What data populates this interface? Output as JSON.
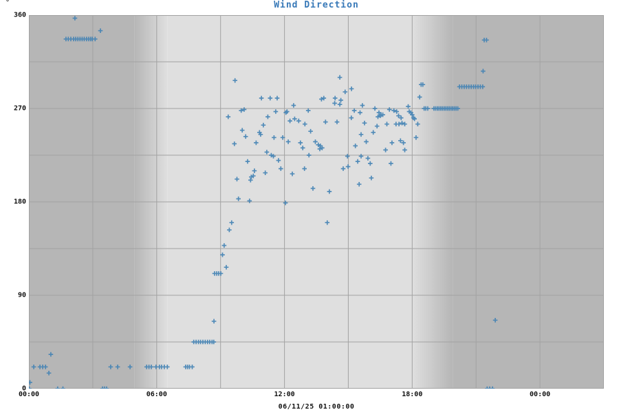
{
  "chart": {
    "title": "Wind Direction",
    "unit_label": "°",
    "x_axis_label": "06/11/25 01:00:00",
    "title_color": "#3879b8",
    "marker_color": "#4182b4"
  },
  "chart_data": {
    "type": "scatter",
    "marker": "plus",
    "title": "Wind Direction",
    "ylabel": "°",
    "xlabel": "06/11/25 01:00:00",
    "x_unit": "hours since 06/11/25 00:00",
    "xlim": [
      0,
      27
    ],
    "ylim": [
      0,
      360
    ],
    "x_ticks": [
      {
        "h": 0,
        "label": "00:00"
      },
      {
        "h": 6,
        "label": "06:00"
      },
      {
        "h": 12,
        "label": "12:00"
      },
      {
        "h": 18,
        "label": "18:00"
      },
      {
        "h": 24,
        "label": "00:00"
      }
    ],
    "x_grid_hours": [
      3,
      6,
      9,
      12,
      15,
      18,
      21,
      24
    ],
    "y_ticks": [
      {
        "v": 0,
        "label": "0"
      },
      {
        "v": 90,
        "label": "90"
      },
      {
        "v": 180,
        "label": "180"
      },
      {
        "v": 270,
        "label": "270"
      },
      {
        "v": 360,
        "label": "360"
      }
    ],
    "y_grid_degrees": [
      45,
      90,
      135,
      180,
      225,
      270,
      315
    ],
    "grid_color": "#a2a2a2",
    "legend": "none",
    "day_night_shading": {
      "night_color": "#b6b6b6",
      "day_color": "#dfdfdf",
      "sunrise_fade_hours": [
        4.95,
        6.5
      ],
      "sunset_fade_hours": [
        18.0,
        19.9
      ]
    },
    "points": [
      [
        0.02,
        0
      ],
      [
        0.05,
        6
      ],
      [
        0.23,
        21
      ],
      [
        0.52,
        21
      ],
      [
        0.65,
        21
      ],
      [
        0.78,
        21
      ],
      [
        0.94,
        15
      ],
      [
        1.03,
        33
      ],
      [
        1.35,
        0
      ],
      [
        1.6,
        0
      ],
      [
        1.74,
        337
      ],
      [
        1.85,
        337
      ],
      [
        1.97,
        337
      ],
      [
        2.1,
        337
      ],
      [
        2.2,
        337
      ],
      [
        2.3,
        337
      ],
      [
        2.4,
        337
      ],
      [
        2.5,
        337
      ],
      [
        2.6,
        337
      ],
      [
        2.71,
        337
      ],
      [
        2.81,
        337
      ],
      [
        2.9,
        337
      ],
      [
        2.98,
        337
      ],
      [
        3.11,
        337
      ],
      [
        2.16,
        357
      ],
      [
        3.36,
        345
      ],
      [
        3.46,
        0
      ],
      [
        3.55,
        0
      ],
      [
        3.65,
        0
      ],
      [
        3.84,
        21
      ],
      [
        4.17,
        21
      ],
      [
        4.75,
        21
      ],
      [
        5.53,
        21
      ],
      [
        5.64,
        21
      ],
      [
        5.75,
        21
      ],
      [
        5.97,
        21
      ],
      [
        6.13,
        21
      ],
      [
        6.23,
        21
      ],
      [
        6.36,
        21
      ],
      [
        6.5,
        21
      ],
      [
        7.36,
        21
      ],
      [
        7.45,
        21
      ],
      [
        7.54,
        21
      ],
      [
        7.67,
        21
      ],
      [
        7.74,
        45
      ],
      [
        7.85,
        45
      ],
      [
        7.96,
        45
      ],
      [
        8.06,
        45
      ],
      [
        8.17,
        45
      ],
      [
        8.28,
        45
      ],
      [
        8.39,
        45
      ],
      [
        8.49,
        45
      ],
      [
        8.6,
        45
      ],
      [
        8.68,
        45
      ],
      [
        8.69,
        65
      ],
      [
        8.72,
        111
      ],
      [
        8.82,
        111
      ],
      [
        8.91,
        111
      ],
      [
        9.01,
        111
      ],
      [
        9.09,
        129
      ],
      [
        9.17,
        138
      ],
      [
        9.27,
        117
      ],
      [
        9.41,
        153
      ],
      [
        9.52,
        160
      ],
      [
        9.36,
        262
      ],
      [
        9.65,
        236
      ],
      [
        9.68,
        297
      ],
      [
        9.77,
        202
      ],
      [
        9.84,
        183
      ],
      [
        9.97,
        268
      ],
      [
        10.02,
        249
      ],
      [
        10.11,
        269
      ],
      [
        10.18,
        243
      ],
      [
        10.27,
        219
      ],
      [
        10.36,
        181
      ],
      [
        10.41,
        201
      ],
      [
        10.44,
        204
      ],
      [
        10.54,
        205
      ],
      [
        10.59,
        210
      ],
      [
        10.67,
        237
      ],
      [
        10.83,
        247
      ],
      [
        10.88,
        245
      ],
      [
        10.92,
        280
      ],
      [
        11.01,
        254
      ],
      [
        11.1,
        208
      ],
      [
        11.17,
        228
      ],
      [
        11.22,
        262
      ],
      [
        11.33,
        280
      ],
      [
        11.38,
        225
      ],
      [
        11.48,
        224
      ],
      [
        11.51,
        242
      ],
      [
        11.59,
        267
      ],
      [
        11.66,
        280
      ],
      [
        11.72,
        220
      ],
      [
        11.83,
        212
      ],
      [
        11.92,
        242
      ],
      [
        12.05,
        179
      ],
      [
        12.07,
        266
      ],
      [
        12.12,
        267
      ],
      [
        12.18,
        238
      ],
      [
        12.26,
        258
      ],
      [
        12.37,
        207
      ],
      [
        12.43,
        273
      ],
      [
        12.48,
        260
      ],
      [
        12.67,
        258
      ],
      [
        12.75,
        237
      ],
      [
        12.86,
        232
      ],
      [
        12.94,
        212
      ],
      [
        12.96,
        255
      ],
      [
        13.12,
        268
      ],
      [
        13.15,
        225
      ],
      [
        13.23,
        248
      ],
      [
        13.34,
        193
      ],
      [
        13.45,
        238
      ],
      [
        13.59,
        235
      ],
      [
        13.66,
        231
      ],
      [
        13.69,
        234
      ],
      [
        13.74,
        279
      ],
      [
        13.77,
        232
      ],
      [
        13.85,
        280
      ],
      [
        13.93,
        257
      ],
      [
        14.01,
        160
      ],
      [
        14.11,
        190
      ],
      [
        14.36,
        275
      ],
      [
        14.38,
        280
      ],
      [
        14.47,
        257
      ],
      [
        14.6,
        300
      ],
      [
        14.6,
        274
      ],
      [
        14.65,
        278
      ],
      [
        14.76,
        212
      ],
      [
        14.85,
        286
      ],
      [
        14.96,
        224
      ],
      [
        14.99,
        214
      ],
      [
        15.14,
        261
      ],
      [
        15.15,
        289
      ],
      [
        15.28,
        268
      ],
      [
        15.33,
        234
      ],
      [
        15.44,
        219
      ],
      [
        15.51,
        197
      ],
      [
        15.55,
        266
      ],
      [
        15.6,
        245
      ],
      [
        15.6,
        224
      ],
      [
        15.66,
        273
      ],
      [
        15.76,
        256
      ],
      [
        15.84,
        238
      ],
      [
        15.92,
        222
      ],
      [
        16.03,
        217
      ],
      [
        16.08,
        203
      ],
      [
        16.17,
        247
      ],
      [
        16.25,
        270
      ],
      [
        16.35,
        253
      ],
      [
        16.39,
        262
      ],
      [
        16.44,
        266
      ],
      [
        16.5,
        263
      ],
      [
        16.54,
        264
      ],
      [
        16.62,
        264
      ],
      [
        16.75,
        230
      ],
      [
        16.81,
        255
      ],
      [
        16.93,
        269
      ],
      [
        17.0,
        217
      ],
      [
        17.05,
        237
      ],
      [
        17.14,
        268
      ],
      [
        17.24,
        255
      ],
      [
        17.27,
        267
      ],
      [
        17.36,
        263
      ],
      [
        17.38,
        255
      ],
      [
        17.45,
        239
      ],
      [
        17.48,
        261
      ],
      [
        17.52,
        256
      ],
      [
        17.59,
        237
      ],
      [
        17.65,
        255
      ],
      [
        17.65,
        230
      ],
      [
        17.81,
        272
      ],
      [
        17.86,
        267
      ],
      [
        17.94,
        266
      ],
      [
        18.0,
        264
      ],
      [
        18.06,
        261
      ],
      [
        18.11,
        260
      ],
      [
        18.18,
        242
      ],
      [
        18.26,
        255
      ],
      [
        18.35,
        281
      ],
      [
        18.42,
        293
      ],
      [
        18.5,
        293
      ],
      [
        18.56,
        270
      ],
      [
        18.64,
        270
      ],
      [
        18.73,
        270
      ],
      [
        19.02,
        270
      ],
      [
        19.1,
        270
      ],
      [
        19.18,
        270
      ],
      [
        19.26,
        270
      ],
      [
        19.34,
        270
      ],
      [
        19.42,
        270
      ],
      [
        19.5,
        270
      ],
      [
        19.58,
        270
      ],
      [
        19.66,
        270
      ],
      [
        19.74,
        270
      ],
      [
        19.82,
        270
      ],
      [
        19.9,
        270
      ],
      [
        19.98,
        270
      ],
      [
        20.06,
        270
      ],
      [
        20.14,
        270
      ],
      [
        20.22,
        291
      ],
      [
        20.33,
        291
      ],
      [
        20.44,
        291
      ],
      [
        20.55,
        291
      ],
      [
        20.66,
        291
      ],
      [
        20.77,
        291
      ],
      [
        20.88,
        291
      ],
      [
        20.98,
        291
      ],
      [
        21.09,
        291
      ],
      [
        21.2,
        291
      ],
      [
        21.31,
        291
      ],
      [
        21.33,
        306
      ],
      [
        21.38,
        336
      ],
      [
        21.49,
        336
      ],
      [
        21.52,
        0
      ],
      [
        21.64,
        0
      ],
      [
        21.77,
        0
      ],
      [
        21.9,
        66
      ]
    ]
  }
}
